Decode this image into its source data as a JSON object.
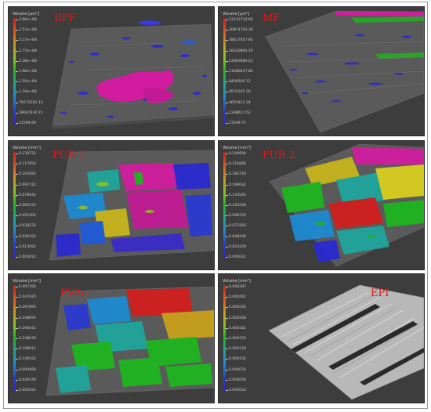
{
  "legend_title": "Volume [mm³]",
  "legend_title_um": "Volume [μm³]",
  "colors": {
    "panel_bg": "#3d3d3d",
    "plate": "#575757",
    "label": "#e01818",
    "scale": [
      "#d21e1e",
      "#e0541c",
      "#c79a1c",
      "#8fc31e",
      "#1fb51f",
      "#1ea59b",
      "#1e8ad2",
      "#1e3fd2",
      "#3a1ec8"
    ]
  },
  "panels": [
    {
      "label": "RPF",
      "legend_title": "Volume [μm³]",
      "ticks": [
        "3.96e+08",
        "3.57e+08",
        "3.17e+08",
        "2.77e+08",
        "2.38e+08",
        "1.98e+08",
        "1.59e+08",
        "1.19e+08",
        "79272261.13",
        "39647430.15",
        "21599.69"
      ]
    },
    {
      "label": "MF",
      "legend_title": "Volume [μm³]",
      "ticks": [
        "23151714.66",
        "20874793.30",
        "18617657.95",
        "16240800.19",
        "13963689.23",
        "11686617.80",
        "9409546.12",
        "6976345.16",
        "4655423.34",
        "2338611.52",
        "21599.71"
      ]
    },
    {
      "label": "PUR 1",
      "legend_title": "Volume [mm³]",
      "ticks": [
        "0.130722",
        "0.117652",
        "0.104582",
        "0.091512",
        "0.078442",
        "0.065372",
        "0.052302",
        "0.039232",
        "0.026162",
        "0.013092",
        "0.000022"
      ]
    },
    {
      "label": "PUR 2",
      "legend_title": "Volume [mm³]",
      "ticks": [
        "0.240894",
        "0.216806",
        "0.192719",
        "0.168632",
        "0.144545",
        "0.120458",
        "0.096370",
        "0.072283",
        "0.048196",
        "0.024109",
        "0.000022"
      ]
    },
    {
      "label": "PVAc",
      "legend_title": "Volume [mm³]",
      "ticks": [
        "0.497356",
        "0.447625",
        "0.397895",
        "0.348095",
        "0.298162",
        "0.248678",
        "0.198911",
        "0.149192",
        "0.099468",
        "0.049749",
        "0.000022"
      ]
    },
    {
      "label": "EPI",
      "legend_title": "Volume [mm³]",
      "ticks": [
        "0.000287",
        "0.000261",
        "0.000235",
        "0.000208",
        "0.000182",
        "0.000155",
        "0.000129",
        "0.000102",
        "0.000076",
        "0.000050",
        "0.000023"
      ]
    }
  ]
}
